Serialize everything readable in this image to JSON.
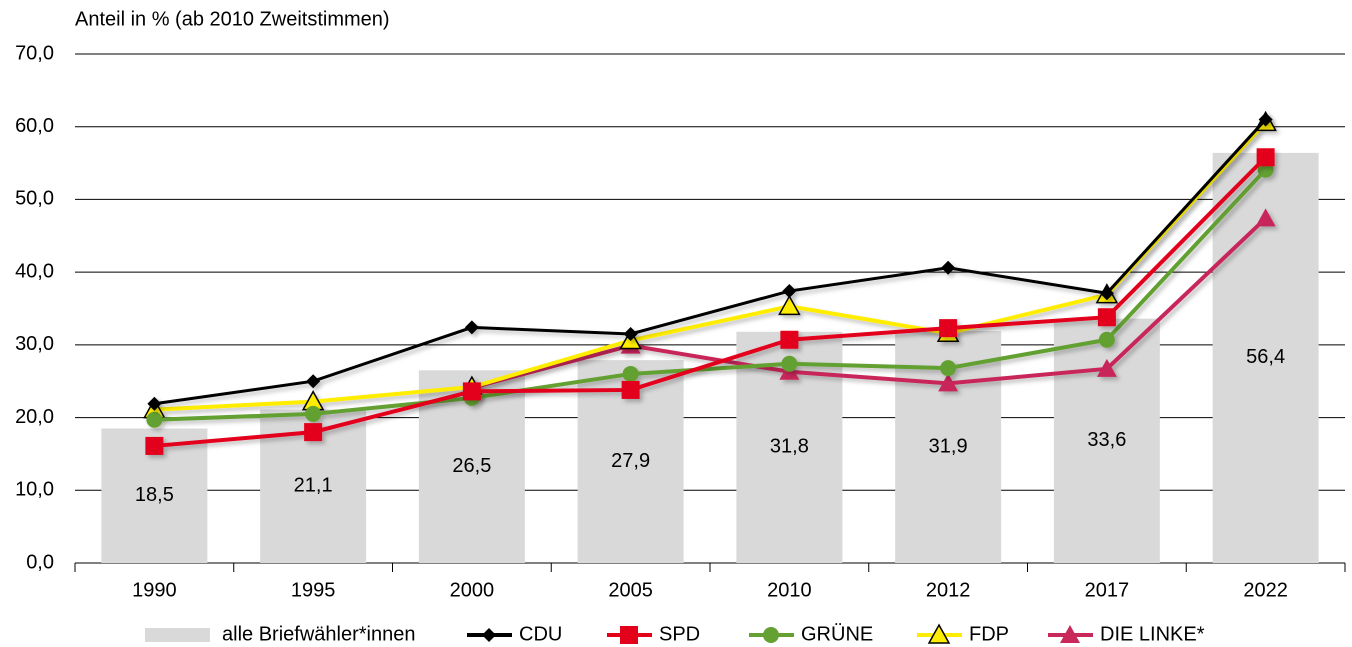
{
  "chart_data": {
    "type": "bar-line",
    "title": "Anteil in % (ab 2010 Zweitstimmen)",
    "categories": [
      "1990",
      "1995",
      "2000",
      "2005",
      "2010",
      "2012",
      "2017",
      "2022"
    ],
    "ylim": [
      0,
      70
    ],
    "yticks": [
      {
        "value": 0,
        "label": "0,0"
      },
      {
        "value": 10,
        "label": "10,0"
      },
      {
        "value": 20,
        "label": "20,0"
      },
      {
        "value": 30,
        "label": "30,0"
      },
      {
        "value": 40,
        "label": "40,0"
      },
      {
        "value": 50,
        "label": "50,0"
      },
      {
        "value": 60,
        "label": "60,0"
      },
      {
        "value": 70,
        "label": "70,0"
      }
    ],
    "grid": true,
    "legend": "bottom",
    "bars": {
      "name": "alle Briefwähler*innen",
      "color": "#d9d9d9",
      "values": [
        18.5,
        21.1,
        26.5,
        27.9,
        31.8,
        31.9,
        33.6,
        56.4
      ],
      "value_labels": [
        "18,5",
        "21,1",
        "26,5",
        "27,9",
        "31,8",
        "31,9",
        "33,6",
        "56,4"
      ]
    },
    "series": [
      {
        "name": "CDU",
        "color": "#000000",
        "marker": "diamond",
        "values": [
          21.9,
          25.0,
          32.4,
          31.5,
          37.4,
          40.6,
          37.1,
          61.0
        ]
      },
      {
        "name": "SPD",
        "color": "#e3001b",
        "marker": "square",
        "values": [
          16.1,
          18.0,
          23.6,
          23.8,
          30.7,
          32.3,
          33.8,
          55.8
        ]
      },
      {
        "name": "GRÜNE",
        "color": "#64a032",
        "marker": "circle",
        "values": [
          19.7,
          20.5,
          22.7,
          26.0,
          27.4,
          26.8,
          30.7,
          54.1
        ]
      },
      {
        "name": "FDP",
        "color": "#ffed00",
        "marker": "triangle-outline",
        "values": [
          21.1,
          22.2,
          24.2,
          30.6,
          35.3,
          31.6,
          36.9,
          60.6
        ]
      },
      {
        "name": "DIE LINKE*",
        "color": "#c8285a",
        "marker": "triangle",
        "values": [
          null,
          null,
          24.1,
          29.9,
          26.3,
          24.7,
          26.7,
          47.4
        ]
      }
    ]
  }
}
